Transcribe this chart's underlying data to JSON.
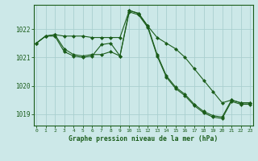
{
  "bg_color": "#cce8e8",
  "grid_color": "#aacfcf",
  "line_color": "#1a5c1a",
  "marker_color": "#1a5c1a",
  "xlabel": "Graphe pression niveau de la mer (hPa)",
  "xlabel_color": "#1a5c1a",
  "tick_color": "#1a5c1a",
  "spine_color": "#1a5c1a",
  "hours": [
    0,
    1,
    2,
    3,
    4,
    5,
    6,
    7,
    8,
    9,
    10,
    11,
    12,
    13,
    14,
    15,
    16,
    17,
    18,
    19,
    20,
    21,
    22,
    23
  ],
  "series1": [
    1021.5,
    1021.75,
    1021.8,
    1021.75,
    1021.75,
    1021.75,
    1021.7,
    1021.7,
    1021.7,
    1021.7,
    1022.65,
    1022.55,
    1022.1,
    1021.7,
    1021.5,
    1021.3,
    1021.0,
    1020.6,
    1020.2,
    1019.8,
    1019.4,
    1019.5,
    1019.4,
    1019.4
  ],
  "series2": [
    1021.5,
    1021.75,
    1021.8,
    1021.3,
    1021.1,
    1021.05,
    1021.1,
    1021.1,
    1021.2,
    1021.05,
    1022.65,
    1022.55,
    1022.1,
    1021.1,
    1020.35,
    1019.95,
    1019.7,
    1019.35,
    1019.1,
    1018.95,
    1018.9,
    1019.5,
    1019.4,
    1019.4
  ],
  "series3": [
    1021.5,
    1021.75,
    1021.75,
    1021.2,
    1021.05,
    1021.0,
    1021.05,
    1021.45,
    1021.5,
    1021.05,
    1022.6,
    1022.5,
    1022.05,
    1021.05,
    1020.3,
    1019.9,
    1019.65,
    1019.3,
    1019.05,
    1018.9,
    1018.85,
    1019.45,
    1019.35,
    1019.35
  ],
  "ylim": [
    1018.6,
    1022.85
  ],
  "yticks": [
    1019,
    1020,
    1021,
    1022
  ],
  "ytick_labels": [
    "1019",
    "1020",
    "1021",
    "1022"
  ],
  "figwidth": 3.2,
  "figheight": 2.0,
  "dpi": 100
}
